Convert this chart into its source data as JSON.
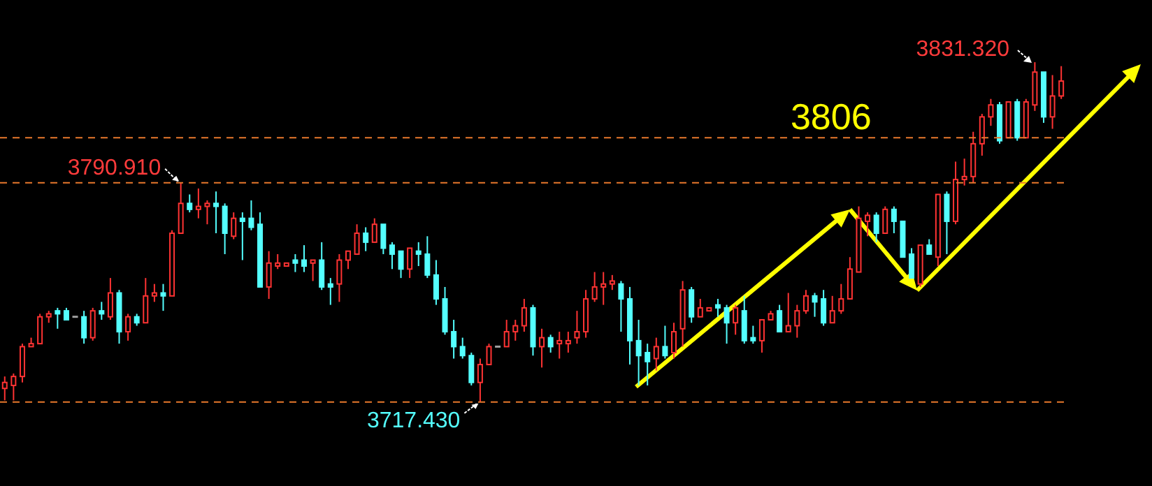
{
  "chart_data": {
    "type": "candlestick",
    "categories": [
      null,
      null,
      null,
      null,
      null,
      null,
      null,
      null,
      null,
      null,
      null,
      null,
      null,
      null,
      null,
      null,
      null,
      null,
      null,
      null,
      null,
      null,
      null,
      null,
      null,
      null,
      null,
      null,
      null,
      null,
      null,
      null,
      null,
      null,
      null,
      null,
      null,
      null,
      null,
      null,
      null,
      null,
      null,
      null,
      null,
      null,
      null,
      null,
      null,
      null,
      null,
      null,
      null,
      null,
      null,
      null,
      null,
      null,
      null,
      null,
      null,
      null,
      null,
      null,
      null,
      null,
      null,
      null,
      null,
      null,
      null,
      null,
      null,
      null,
      null,
      null,
      null,
      null,
      null,
      null,
      null,
      null,
      null,
      null,
      null,
      null,
      null,
      null,
      null,
      null,
      null,
      null,
      null,
      null,
      null,
      null,
      null,
      null,
      null,
      null,
      null,
      null,
      null,
      null,
      null,
      null,
      null,
      null,
      null,
      null,
      null,
      null,
      null,
      null,
      null,
      null,
      null,
      null,
      null,
      null,
      null
    ],
    "ohlc": [
      [
        3722,
        3726,
        3718,
        3724
      ],
      [
        3723,
        3727,
        3718,
        3726
      ],
      [
        3726,
        3737,
        3724,
        3736
      ],
      [
        3736,
        3739,
        3736,
        3737
      ],
      [
        3737,
        3747,
        3737,
        3746
      ],
      [
        3746,
        3748,
        3744,
        3747
      ],
      [
        3748,
        3749,
        3742,
        3747
      ],
      [
        3748,
        3749,
        3745,
        3745
      ],
      [
        3746,
        3746,
        3746,
        3746
      ],
      [
        3746,
        3748,
        3737,
        3739
      ],
      [
        3739,
        3749,
        3738,
        3748
      ],
      [
        3748,
        3751,
        3745,
        3747
      ],
      [
        3746,
        3759,
        3745,
        3754
      ],
      [
        3754,
        3755,
        3737,
        3741
      ],
      [
        3741,
        3747,
        3738,
        3746
      ],
      [
        3746,
        3747,
        3743,
        3744
      ],
      [
        3744,
        3759,
        3744,
        3753
      ],
      [
        3753,
        3757,
        3751,
        3754
      ],
      [
        3754,
        3757,
        3748,
        3753
      ],
      [
        3753,
        3775,
        3753,
        3774
      ],
      [
        3774,
        3790.91,
        3774,
        3784
      ],
      [
        3784,
        3787,
        3781,
        3782
      ],
      [
        3782,
        3789,
        3779,
        3783
      ],
      [
        3783,
        3785,
        3777,
        3784
      ],
      [
        3784,
        3788,
        3774,
        3783
      ],
      [
        3783,
        3784,
        3767,
        3774
      ],
      [
        3773,
        3781,
        3772,
        3779
      ],
      [
        3779,
        3781,
        3765,
        3778
      ],
      [
        3779,
        3785,
        3775,
        3776
      ],
      [
        3777,
        3781,
        3756,
        3756
      ],
      [
        3756,
        3768,
        3752,
        3764
      ],
      [
        3763,
        3767,
        3762,
        3764
      ],
      [
        3763,
        3764,
        3763,
        3764
      ],
      [
        3765,
        3767,
        3761,
        3764
      ],
      [
        3765,
        3770,
        3761,
        3763
      ],
      [
        3764,
        3765,
        3758,
        3765
      ],
      [
        3765,
        3771,
        3755,
        3756
      ],
      [
        3757,
        3759,
        3750,
        3756
      ],
      [
        3757,
        3767,
        3751,
        3765
      ],
      [
        3765,
        3768,
        3762,
        3768
      ],
      [
        3767,
        3777,
        3767,
        3774
      ],
      [
        3774,
        3776,
        3768,
        3771
      ],
      [
        3771,
        3779,
        3771,
        3777
      ],
      [
        3777,
        3777,
        3767,
        3769
      ],
      [
        3770,
        3771,
        3762,
        3767
      ],
      [
        3768,
        3768,
        3759,
        3762
      ],
      [
        3762,
        3769,
        3759,
        3769
      ],
      [
        3768,
        3771,
        3763,
        3767
      ],
      [
        3767,
        3773,
        3759,
        3760
      ],
      [
        3760,
        3765,
        3750,
        3752
      ],
      [
        3752,
        3756,
        3740,
        3741
      ],
      [
        3741,
        3745,
        3732,
        3736
      ],
      [
        3736,
        3739,
        3732,
        3733
      ],
      [
        3733,
        3734,
        3723,
        3724
      ],
      [
        3724,
        3732,
        3717.43,
        3730
      ],
      [
        3730,
        3737,
        3730,
        3736
      ],
      [
        3736,
        3736,
        3736,
        3736
      ],
      [
        3736,
        3745,
        3736,
        3741
      ],
      [
        3741,
        3745,
        3738,
        3743
      ],
      [
        3743,
        3752,
        3741,
        3749
      ],
      [
        3749,
        3750,
        3733,
        3736
      ],
      [
        3736,
        3742,
        3729,
        3739
      ],
      [
        3739,
        3740,
        3734,
        3736
      ],
      [
        3737,
        3741,
        3732,
        3738
      ],
      [
        3737,
        3741,
        3734,
        3738
      ],
      [
        3739,
        3748,
        3737,
        3741
      ],
      [
        3741,
        3755,
        3739,
        3752
      ],
      [
        3752,
        3761,
        3751,
        3756
      ],
      [
        3756,
        3761,
        3750,
        3757
      ],
      [
        3757,
        3760,
        3755,
        3758
      ],
      [
        3757,
        3758,
        3741,
        3752
      ],
      [
        3752,
        3756,
        3730,
        3738
      ],
      [
        3738,
        3745,
        3723,
        3733
      ],
      [
        3734,
        3737,
        3723,
        3731
      ],
      [
        3732,
        3739,
        3728,
        3736
      ],
      [
        3736,
        3743,
        3732,
        3733
      ],
      [
        3734,
        3744,
        3732,
        3741
      ],
      [
        3742,
        3758,
        3736,
        3755
      ],
      [
        3755,
        3756,
        3744,
        3746
      ],
      [
        3746,
        3752,
        3746,
        3749
      ],
      [
        3748,
        3749,
        3748,
        3749
      ],
      [
        3750,
        3752,
        3746,
        3749
      ],
      [
        3749,
        3750,
        3737,
        3744
      ],
      [
        3744,
        3750,
        3740,
        3749
      ],
      [
        3748,
        3753,
        3737,
        3738
      ],
      [
        3739,
        3743,
        3737,
        3738
      ],
      [
        3738,
        3745,
        3734,
        3745
      ],
      [
        3745,
        3748,
        3745,
        3747
      ],
      [
        3748,
        3750,
        3741,
        3741
      ],
      [
        3741,
        3754,
        3741,
        3743
      ],
      [
        3743,
        3750,
        3739,
        3748
      ],
      [
        3748,
        3755,
        3747,
        3753
      ],
      [
        3753,
        3754,
        3746,
        3751
      ],
      [
        3752,
        3755,
        3743,
        3744
      ],
      [
        3744,
        3753,
        3744,
        3748
      ],
      [
        3748,
        3757,
        3747,
        3752
      ],
      [
        3752,
        3766,
        3752,
        3762
      ],
      [
        3761,
        3783,
        3761,
        3779
      ],
      [
        3778,
        3781,
        3773,
        3780
      ],
      [
        3780,
        3781,
        3771,
        3774
      ],
      [
        3774,
        3783,
        3774,
        3782
      ],
      [
        3782,
        3783,
        3774,
        3778
      ],
      [
        3778,
        3778,
        3766,
        3766
      ],
      [
        3767,
        3769,
        3759,
        3759
      ],
      [
        3757,
        3770,
        3756,
        3770
      ],
      [
        3770,
        3772,
        3767,
        3767
      ],
      [
        3766,
        3787,
        3763,
        3787
      ],
      [
        3787,
        3788,
        3767,
        3778
      ],
      [
        3778,
        3798,
        3777,
        3792
      ],
      [
        3792,
        3799,
        3790,
        3793
      ],
      [
        3793,
        3808,
        3791,
        3804
      ],
      [
        3804,
        3814,
        3800,
        3813
      ],
      [
        3813,
        3819,
        3810,
        3817
      ],
      [
        3817,
        3818,
        3804,
        3805
      ],
      [
        3806,
        3818,
        3806,
        3818
      ],
      [
        3818,
        3819,
        3805,
        3806
      ],
      [
        3806,
        3819,
        3806,
        3818
      ],
      [
        3817,
        3831.32,
        3815,
        3828
      ],
      [
        3828,
        3828,
        3811,
        3813
      ],
      [
        3813,
        3827,
        3809,
        3820
      ],
      [
        3820,
        3830,
        3819,
        3825
      ]
    ],
    "colors": [
      "#ff3333",
      "#ff3333",
      "#ff3333",
      "#ff3333",
      "#ff3333",
      "#ff3333",
      "#54ffff",
      "#54ffff",
      "#a0a0a0",
      "#54ffff",
      "#ff3333",
      "#54ffff",
      "#ff3333",
      "#54ffff",
      "#ff3333",
      "#54ffff",
      "#ff3333",
      "#ff3333",
      "#54ffff",
      "#ff3333",
      "#ff3333",
      "#54ffff",
      "#ff3333",
      "#ff3333",
      "#54ffff",
      "#54ffff",
      "#ff3333",
      "#54ffff",
      "#54ffff",
      "#54ffff",
      "#ff3333",
      "#ff3333",
      "#ff3333",
      "#54ffff",
      "#54ffff",
      "#ff3333",
      "#54ffff",
      "#54ffff",
      "#ff3333",
      "#ff3333",
      "#ff3333",
      "#54ffff",
      "#ff3333",
      "#54ffff",
      "#54ffff",
      "#54ffff",
      "#ff3333",
      "#54ffff",
      "#54ffff",
      "#54ffff",
      "#54ffff",
      "#54ffff",
      "#54ffff",
      "#54ffff",
      "#ff3333",
      "#ff3333",
      "#a0a0a0",
      "#ff3333",
      "#ff3333",
      "#ff3333",
      "#54ffff",
      "#ff3333",
      "#54ffff",
      "#ff3333",
      "#ff3333",
      "#ff3333",
      "#ff3333",
      "#ff3333",
      "#ff3333",
      "#ff3333",
      "#54ffff",
      "#54ffff",
      "#54ffff",
      "#54ffff",
      "#ff3333",
      "#54ffff",
      "#ff3333",
      "#ff3333",
      "#54ffff",
      "#ff3333",
      "#ff3333",
      "#54ffff",
      "#54ffff",
      "#ff3333",
      "#54ffff",
      "#54ffff",
      "#ff3333",
      "#ff3333",
      "#54ffff",
      "#ff3333",
      "#ff3333",
      "#ff3333",
      "#54ffff",
      "#54ffff",
      "#ff3333",
      "#ff3333",
      "#ff3333",
      "#ff3333",
      "#ff3333",
      "#54ffff",
      "#ff3333",
      "#54ffff",
      "#54ffff",
      "#54ffff",
      "#ff3333",
      "#54ffff",
      "#ff3333",
      "#54ffff",
      "#ff3333",
      "#ff3333",
      "#ff3333",
      "#ff3333",
      "#ff3333",
      "#54ffff",
      "#ff3333",
      "#54ffff",
      "#ff3333",
      "#ff3333",
      "#54ffff",
      "#ff3333",
      "#ff3333"
    ],
    "ref_lines": [
      {
        "axis": "y",
        "value": 3806,
        "label": "3806",
        "color": "#e8782c",
        "line_style": "dashed"
      },
      {
        "axis": "y",
        "value": 3790.91,
        "color": "#e8782c",
        "line_style": "dashed"
      },
      {
        "axis": "y",
        "value": 3717.43,
        "color": "#e8782c",
        "line_style": "dashed"
      }
    ],
    "annotations": [
      {
        "text": "3790.910",
        "y": 3790.91
      },
      "3831.320",
      {
        "text": "3717.430",
        "y": 3717.43
      }
    ]
  }
}
